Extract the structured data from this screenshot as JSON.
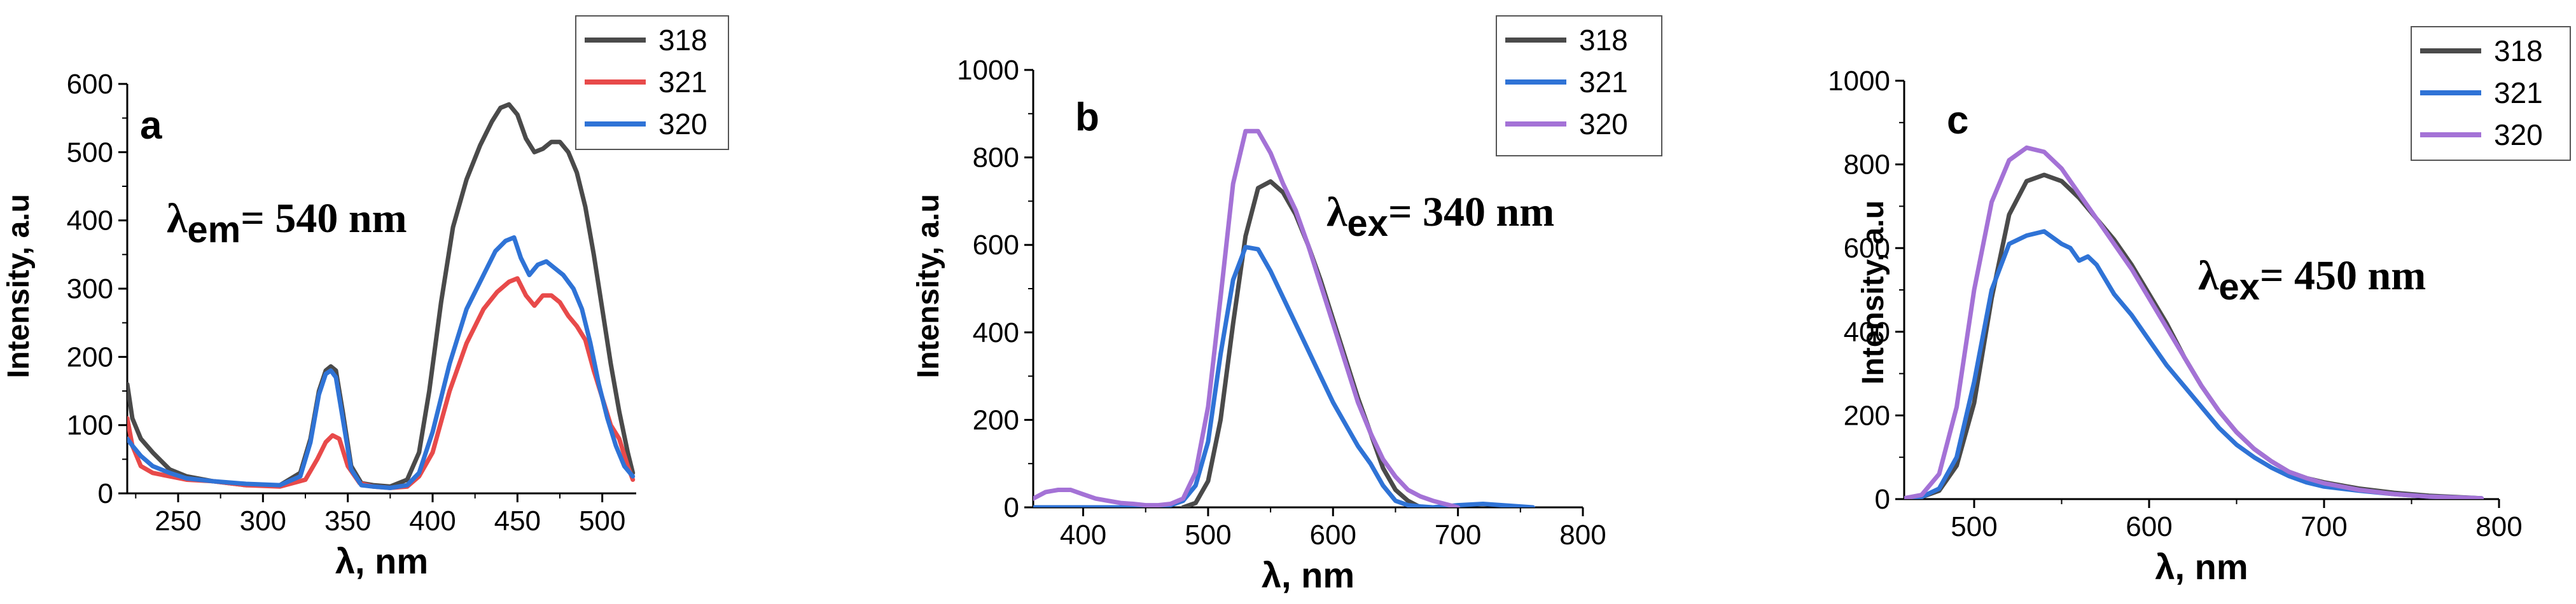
{
  "chart_data": [
    {
      "type": "line",
      "panel": "a",
      "xlabel": "λ, nm",
      "ylabel": "Intensity, a.u",
      "xlim": [
        220,
        520
      ],
      "ylim": [
        0,
        600
      ],
      "xticks": [
        250,
        300,
        350,
        400,
        450,
        500
      ],
      "yticks": [
        0,
        100,
        200,
        300,
        400,
        500,
        600
      ],
      "annotation": {
        "base": "λ",
        "sub": "em",
        "rest": "= 540 nm"
      },
      "legend_position": "top-right",
      "series": [
        {
          "name": "318",
          "color": "#4a4a4a",
          "x": [
            220,
            223,
            228,
            235,
            245,
            255,
            270,
            290,
            310,
            322,
            328,
            333,
            337,
            340,
            343,
            347,
            352,
            358,
            365,
            375,
            385,
            392,
            398,
            405,
            412,
            420,
            428,
            435,
            440,
            445,
            450,
            455,
            460,
            465,
            470,
            475,
            480,
            485,
            490,
            495,
            500,
            505,
            510,
            515,
            518
          ],
          "y": [
            160,
            110,
            80,
            60,
            35,
            25,
            18,
            12,
            12,
            30,
            80,
            150,
            180,
            186,
            180,
            120,
            40,
            15,
            12,
            10,
            20,
            60,
            150,
            280,
            390,
            460,
            510,
            545,
            565,
            570,
            555,
            520,
            500,
            505,
            515,
            515,
            500,
            470,
            420,
            350,
            270,
            190,
            120,
            60,
            30
          ]
        },
        {
          "name": "321",
          "color": "#e84a4a",
          "x": [
            220,
            223,
            228,
            235,
            245,
            255,
            270,
            290,
            310,
            325,
            332,
            337,
            341,
            345,
            350,
            357,
            365,
            375,
            385,
            392,
            400,
            410,
            420,
            430,
            438,
            445,
            450,
            455,
            460,
            465,
            470,
            475,
            480,
            485,
            490,
            495,
            500,
            505,
            510,
            515,
            518
          ],
          "y": [
            110,
            70,
            40,
            30,
            25,
            20,
            18,
            12,
            10,
            20,
            50,
            75,
            85,
            80,
            40,
            15,
            10,
            8,
            10,
            25,
            60,
            150,
            220,
            270,
            295,
            310,
            315,
            290,
            275,
            290,
            290,
            280,
            260,
            245,
            225,
            180,
            140,
            100,
            80,
            40,
            20
          ]
        },
        {
          "name": "320",
          "color": "#2f73d6",
          "x": [
            220,
            223,
            228,
            235,
            245,
            255,
            270,
            290,
            310,
            322,
            328,
            333,
            337,
            340,
            343,
            347,
            352,
            358,
            365,
            375,
            385,
            392,
            400,
            410,
            420,
            430,
            437,
            443,
            448,
            452,
            457,
            462,
            467,
            472,
            477,
            483,
            488,
            493,
            498,
            503,
            508,
            513,
            518
          ],
          "y": [
            80,
            70,
            55,
            40,
            30,
            22,
            18,
            14,
            12,
            25,
            75,
            145,
            175,
            180,
            170,
            110,
            35,
            12,
            10,
            8,
            12,
            30,
            90,
            190,
            270,
            320,
            355,
            370,
            375,
            345,
            320,
            335,
            340,
            330,
            320,
            300,
            270,
            220,
            160,
            110,
            70,
            40,
            25
          ]
        }
      ]
    },
    {
      "type": "line",
      "panel": "b",
      "xlabel": "λ, nm",
      "ylabel": "Intensity, a.u",
      "xlim": [
        360,
        800
      ],
      "ylim": [
        0,
        1000
      ],
      "xticks": [
        400,
        500,
        600,
        700,
        800
      ],
      "yticks": [
        0,
        200,
        400,
        600,
        800,
        1000
      ],
      "annotation": {
        "base": "λ",
        "sub": "ex",
        "rest": "= 340 nm"
      },
      "legend_position": "top-right",
      "series": [
        {
          "name": "318",
          "color": "#4a4a4a",
          "x": [
            480,
            490,
            500,
            510,
            520,
            530,
            540,
            550,
            560,
            570,
            580,
            590,
            600,
            610,
            620,
            630,
            640,
            650,
            660,
            670
          ],
          "y": [
            0,
            10,
            60,
            200,
            420,
            620,
            730,
            745,
            720,
            670,
            600,
            520,
            430,
            340,
            250,
            170,
            90,
            40,
            15,
            0
          ]
        },
        {
          "name": "321",
          "color": "#2f73d6",
          "x": [
            360,
            380,
            400,
            420,
            440,
            460,
            470,
            480,
            490,
            500,
            510,
            520,
            530,
            540,
            550,
            560,
            570,
            580,
            590,
            600,
            610,
            620,
            630,
            640,
            650,
            660,
            670,
            680,
            700,
            720,
            760
          ],
          "y": [
            0,
            0,
            0,
            0,
            0,
            2,
            5,
            15,
            50,
            150,
            350,
            520,
            595,
            590,
            540,
            480,
            420,
            360,
            300,
            240,
            190,
            140,
            100,
            50,
            15,
            5,
            2,
            0,
            5,
            8,
            0
          ]
        },
        {
          "name": "320",
          "color": "#a472d6",
          "x": [
            360,
            370,
            380,
            390,
            400,
            410,
            420,
            430,
            440,
            450,
            460,
            470,
            480,
            490,
            500,
            510,
            520,
            530,
            540,
            550,
            560,
            570,
            580,
            590,
            600,
            610,
            620,
            630,
            640,
            650,
            660,
            670,
            680,
            700
          ],
          "y": [
            20,
            35,
            40,
            40,
            30,
            20,
            15,
            10,
            8,
            5,
            5,
            8,
            20,
            80,
            230,
            480,
            740,
            860,
            860,
            810,
            740,
            680,
            600,
            510,
            420,
            330,
            240,
            170,
            110,
            70,
            40,
            25,
            15,
            0
          ]
        }
      ]
    },
    {
      "type": "line",
      "panel": "c",
      "xlabel": "λ, nm",
      "ylabel": "Intensity, a.u",
      "xlim": [
        460,
        800
      ],
      "ylim": [
        0,
        1000
      ],
      "xticks": [
        500,
        600,
        700,
        800
      ],
      "yticks": [
        0,
        200,
        400,
        600,
        800,
        1000
      ],
      "annotation": {
        "base": "λ",
        "sub": "ex",
        "rest": "= 450 nm"
      },
      "legend_position": "top-right",
      "series": [
        {
          "name": "318",
          "color": "#4a4a4a",
          "x": [
            460,
            470,
            480,
            490,
            500,
            510,
            520,
            530,
            540,
            550,
            560,
            570,
            580,
            590,
            600,
            610,
            620,
            630,
            640,
            650,
            660,
            670,
            680,
            690,
            700,
            720,
            740,
            760,
            790
          ],
          "y": [
            2,
            5,
            20,
            80,
            230,
            480,
            680,
            760,
            775,
            760,
            720,
            670,
            620,
            560,
            490,
            420,
            340,
            270,
            210,
            160,
            120,
            90,
            65,
            50,
            40,
            25,
            15,
            8,
            2
          ]
        },
        {
          "name": "321",
          "color": "#2f73d6",
          "x": [
            460,
            470,
            480,
            490,
            500,
            510,
            520,
            530,
            540,
            550,
            555,
            560,
            565,
            570,
            580,
            590,
            600,
            610,
            620,
            630,
            640,
            650,
            660,
            670,
            680,
            690,
            700,
            720,
            740,
            760,
            790
          ],
          "y": [
            2,
            5,
            25,
            100,
            280,
            500,
            610,
            630,
            640,
            610,
            600,
            570,
            580,
            560,
            490,
            440,
            380,
            320,
            270,
            220,
            170,
            130,
            100,
            75,
            55,
            40,
            30,
            20,
            12,
            6,
            2
          ]
        },
        {
          "name": "320",
          "color": "#a472d6",
          "x": [
            460,
            470,
            480,
            490,
            500,
            510,
            520,
            530,
            540,
            550,
            560,
            570,
            580,
            590,
            600,
            610,
            620,
            630,
            640,
            650,
            660,
            670,
            680,
            690,
            700,
            720,
            740,
            760,
            790
          ],
          "y": [
            2,
            10,
            60,
            220,
            500,
            710,
            810,
            840,
            830,
            790,
            730,
            670,
            610,
            550,
            480,
            410,
            340,
            270,
            210,
            160,
            120,
            90,
            65,
            50,
            38,
            22,
            12,
            6,
            2
          ]
        }
      ]
    }
  ]
}
